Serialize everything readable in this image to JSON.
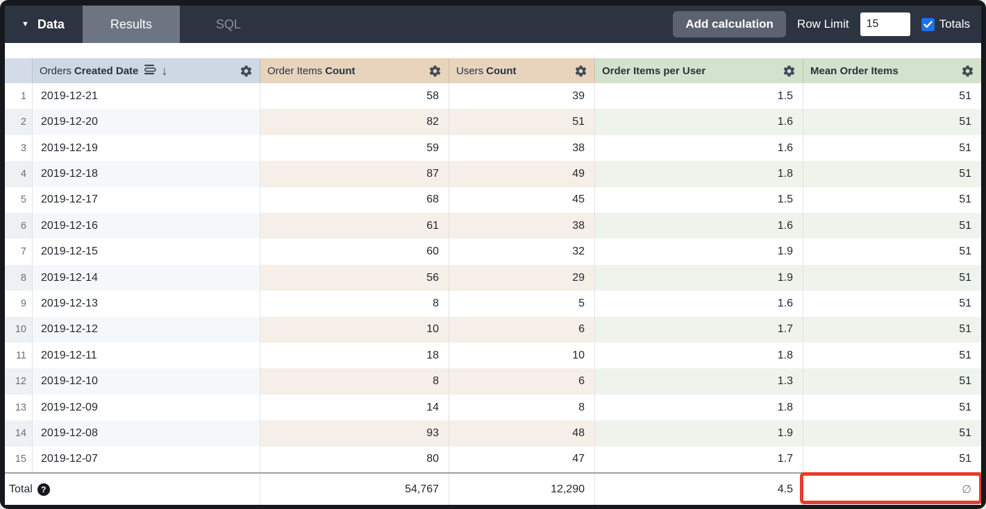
{
  "toolbar": {
    "data_label": "Data",
    "caret_icon": "chevron-down",
    "tabs": [
      {
        "label": "Results",
        "active": true
      },
      {
        "label": "SQL",
        "active": false
      }
    ],
    "add_calculation_label": "Add calculation",
    "row_limit_label": "Row Limit",
    "row_limit_value": "15",
    "totals_label": "Totals",
    "totals_checked": true
  },
  "table": {
    "columns": [
      {
        "id": "row_number",
        "label_prefix": "",
        "label_bold": "",
        "group": "num"
      },
      {
        "id": "orders_created_date",
        "label_prefix": "Orders",
        "label_bold": "Created Date",
        "group": "dimension",
        "sort": "desc",
        "icons": [
          "subtotal-icon",
          "sort-desc-arrow-icon",
          "gear-icon"
        ]
      },
      {
        "id": "order_items_count",
        "label_prefix": "Order Items",
        "label_bold": "Count",
        "group": "measure",
        "icons": [
          "gear-icon"
        ]
      },
      {
        "id": "users_count",
        "label_prefix": "Users",
        "label_bold": "Count",
        "group": "measure",
        "icons": [
          "gear-icon"
        ]
      },
      {
        "id": "order_items_per_user",
        "label_prefix": "",
        "label_bold": "Order Items per User",
        "group": "calculation",
        "icons": [
          "gear-icon"
        ]
      },
      {
        "id": "mean_order_items",
        "label_prefix": "",
        "label_bold": "Mean Order Items",
        "group": "calculation",
        "icons": [
          "gear-icon"
        ]
      }
    ],
    "rows": [
      {
        "num": "1",
        "date": "2019-12-21",
        "order_items_count": "58",
        "users_count": "39",
        "order_items_per_user": "1.5",
        "mean_order_items": "51"
      },
      {
        "num": "2",
        "date": "2019-12-20",
        "order_items_count": "82",
        "users_count": "51",
        "order_items_per_user": "1.6",
        "mean_order_items": "51"
      },
      {
        "num": "3",
        "date": "2019-12-19",
        "order_items_count": "59",
        "users_count": "38",
        "order_items_per_user": "1.6",
        "mean_order_items": "51"
      },
      {
        "num": "4",
        "date": "2019-12-18",
        "order_items_count": "87",
        "users_count": "49",
        "order_items_per_user": "1.8",
        "mean_order_items": "51"
      },
      {
        "num": "5",
        "date": "2019-12-17",
        "order_items_count": "68",
        "users_count": "45",
        "order_items_per_user": "1.5",
        "mean_order_items": "51"
      },
      {
        "num": "6",
        "date": "2019-12-16",
        "order_items_count": "61",
        "users_count": "38",
        "order_items_per_user": "1.6",
        "mean_order_items": "51"
      },
      {
        "num": "7",
        "date": "2019-12-15",
        "order_items_count": "60",
        "users_count": "32",
        "order_items_per_user": "1.9",
        "mean_order_items": "51"
      },
      {
        "num": "8",
        "date": "2019-12-14",
        "order_items_count": "56",
        "users_count": "29",
        "order_items_per_user": "1.9",
        "mean_order_items": "51"
      },
      {
        "num": "9",
        "date": "2019-12-13",
        "order_items_count": "8",
        "users_count": "5",
        "order_items_per_user": "1.6",
        "mean_order_items": "51"
      },
      {
        "num": "10",
        "date": "2019-12-12",
        "order_items_count": "10",
        "users_count": "6",
        "order_items_per_user": "1.7",
        "mean_order_items": "51"
      },
      {
        "num": "11",
        "date": "2019-12-11",
        "order_items_count": "18",
        "users_count": "10",
        "order_items_per_user": "1.8",
        "mean_order_items": "51"
      },
      {
        "num": "12",
        "date": "2019-12-10",
        "order_items_count": "8",
        "users_count": "6",
        "order_items_per_user": "1.3",
        "mean_order_items": "51"
      },
      {
        "num": "13",
        "date": "2019-12-09",
        "order_items_count": "14",
        "users_count": "8",
        "order_items_per_user": "1.8",
        "mean_order_items": "51"
      },
      {
        "num": "14",
        "date": "2019-12-08",
        "order_items_count": "93",
        "users_count": "48",
        "order_items_per_user": "1.9",
        "mean_order_items": "51"
      },
      {
        "num": "15",
        "date": "2019-12-07",
        "order_items_count": "80",
        "users_count": "47",
        "order_items_per_user": "1.7",
        "mean_order_items": "51"
      }
    ],
    "total": {
      "label": "Total",
      "help_icon": "question-mark-circle",
      "order_items_count": "54,767",
      "users_count": "12,290",
      "order_items_per_user": "4.5",
      "mean_order_items": "∅"
    }
  },
  "annotations": {
    "highlight": "red box around Mean Order Items total cell",
    "highlight_color": "#e83b28"
  },
  "colors": {
    "toolbar_bg": "#2d3441",
    "active_tab_bg": "#6e7582",
    "checkbox_blue": "#1a73e8",
    "header_dimension_bg": "#cdd8e3",
    "header_measure_bg": "#e8d4bd",
    "header_calculation_bg": "#d3e2cc",
    "alt_dimension_row": "#f5f8fa",
    "alt_measure_row": "#f5efe8",
    "alt_calculation_row": "#eef4eb"
  }
}
